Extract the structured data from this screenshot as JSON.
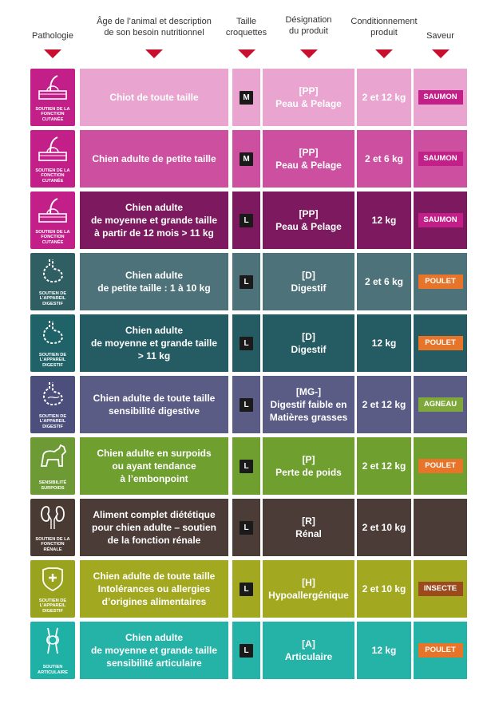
{
  "headers": {
    "pathologie": "Pathologie",
    "age_line1": "Âge de l’animal et description",
    "age_line2": "de son besoin nutritionnel",
    "taille_line1": "Taille",
    "taille_line2": "croquettes",
    "designation_line1": "Désignation",
    "designation_line2": "du produit",
    "conditionnement_line1": "Conditionnement",
    "conditionnement_line2": "produit",
    "saveur": "Saveur"
  },
  "colors": {
    "header_arrow": "#c8102e",
    "size_badge": "#1a1a1a",
    "saumon": "#c21f88",
    "poulet": "#e8742a",
    "agneau": "#7fa83b",
    "insecte": "#9b4a1e"
  },
  "rows": [
    {
      "pathology": "SOUTIEN DE LA FONCTION CUTANÉE",
      "icon": "skin-hair-icon",
      "desc": [
        "Chiot de toute taille"
      ],
      "size": "M",
      "code": "[PP]",
      "name": [
        "Peau & Pelage"
      ],
      "pack": "2 et 12 kg",
      "flavor": "SAUMON"
    },
    {
      "pathology": "SOUTIEN DE LA FONCTION CUTANÉE",
      "icon": "skin-hair-icon",
      "desc": [
        "Chien adulte de petite taille"
      ],
      "size": "M",
      "code": "[PP]",
      "name": [
        "Peau & Pelage"
      ],
      "pack": "2 et 6 kg",
      "flavor": "SAUMON"
    },
    {
      "pathology": "SOUTIEN DE LA FONCTION CUTANÉE",
      "icon": "skin-hair-icon",
      "desc": [
        "Chien adulte",
        "de moyenne et grande taille",
        "à partir de 12 mois  > 11 kg"
      ],
      "size": "L",
      "code": "[PP]",
      "name": [
        "Peau & Pelage"
      ],
      "pack": "12 kg",
      "flavor": "SAUMON"
    },
    {
      "pathology": "SOUTIEN DE L’APPAREIL DIGESTIF",
      "icon": "stomach-icon",
      "desc": [
        "Chien adulte",
        "de petite taille : 1 à 10 kg"
      ],
      "size": "L",
      "code": "[D]",
      "name": [
        "Digestif"
      ],
      "pack": "2 et 6 kg",
      "flavor": "POULET"
    },
    {
      "pathology": "SOUTIEN DE L’APPAREIL DIGESTIF",
      "icon": "stomach-icon",
      "desc": [
        "Chien adulte",
        "de moyenne et grande taille",
        "> 11 kg"
      ],
      "size": "L",
      "code": "[D]",
      "name": [
        "Digestif"
      ],
      "pack": "12 kg",
      "flavor": "POULET"
    },
    {
      "pathology": "SOUTIEN DE L’APPAREIL DIGESTIF",
      "icon": "stomach-icon",
      "desc": [
        "Chien adulte de toute taille",
        "sensibilité digestive"
      ],
      "size": "L",
      "code": "[MG-]",
      "name": [
        "Digestif faible en",
        "Matières grasses"
      ],
      "pack": "2 et 12 kg",
      "flavor": "AGNEAU"
    },
    {
      "pathology": "SENSIBILITÉ SURPOIDS",
      "icon": "dog-weight-icon",
      "desc": [
        "Chien adulte en surpoids",
        "ou ayant tendance",
        "à l’embonpoint"
      ],
      "size": "L",
      "code": "[P]",
      "name": [
        "Perte de poids"
      ],
      "pack": "2 et 12 kg",
      "flavor": "POULET"
    },
    {
      "pathology": "SOUTIEN DE LA FONCTION RÉNALE",
      "icon": "kidney-icon",
      "desc": [
        "Aliment complet diététique",
        "pour chien adulte – soutien",
        "de la fonction rénale"
      ],
      "size": "L",
      "code": "[R]",
      "name": [
        "Rénal"
      ],
      "pack": "2 et 10 kg",
      "flavor": ""
    },
    {
      "pathology": "SOUTIEN DE L’APPAREIL DIGESTIF",
      "icon": "dog-shield-icon",
      "desc": [
        "Chien adulte de toute taille",
        "Intolérances ou allergies",
        "d’origines alimentaires"
      ],
      "size": "L",
      "code": "[H]",
      "name": [
        "Hypoallergénique"
      ],
      "pack": "2 et 10 kg",
      "flavor": "INSECTE"
    },
    {
      "pathology": "SOUTIEN ARTICULAIRE",
      "icon": "joint-icon",
      "desc": [
        "Chien adulte",
        "de moyenne et grande taille",
        "sensibilité articulaire"
      ],
      "size": "L",
      "code": "[A]",
      "name": [
        "Articulaire"
      ],
      "pack": "12 kg",
      "flavor": "POULET"
    }
  ]
}
